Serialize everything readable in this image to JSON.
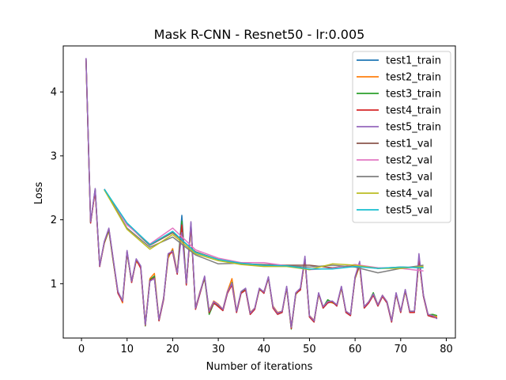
{
  "chart_data": {
    "type": "line",
    "title": "Mask R-CNN - Resnet50 - lr:0.005",
    "xlabel": "Number of iterations",
    "ylabel": "Loss",
    "xlim": [
      -4,
      82
    ],
    "ylim": [
      0.15,
      4.72
    ],
    "xticks": [
      0,
      10,
      20,
      30,
      40,
      50,
      60,
      70,
      80
    ],
    "yticks": [
      1,
      2,
      3,
      4
    ],
    "grid": false,
    "legend_position": "top-right",
    "series": [
      {
        "name": "test1_train",
        "color": "#1f77b4",
        "x": [
          1,
          2,
          3,
          4,
          5,
          6,
          7,
          8,
          9,
          10,
          11,
          12,
          13,
          14,
          15,
          16,
          17,
          18,
          19,
          20,
          21,
          22,
          23,
          24,
          25,
          26,
          27,
          28,
          29,
          30,
          31,
          32,
          33,
          34,
          35,
          36,
          37,
          38,
          39,
          40,
          41,
          42,
          43,
          44,
          45,
          46,
          47,
          48,
          49,
          50,
          51,
          52,
          53,
          54,
          55,
          56,
          57,
          58,
          59,
          60,
          61,
          62,
          63,
          64,
          65,
          66,
          67,
          68,
          69,
          70,
          71,
          72,
          73,
          74,
          75,
          76,
          77,
          78
        ],
        "y": [
          4.52,
          1.95,
          2.48,
          1.27,
          1.65,
          1.85,
          1.35,
          0.85,
          0.72,
          1.5,
          1.02,
          1.38,
          1.25,
          0.35,
          1.05,
          1.1,
          0.42,
          0.75,
          1.45,
          1.5,
          1.15,
          2.07,
          0.98,
          1.95,
          0.6,
          0.85,
          1.1,
          0.55,
          0.7,
          0.65,
          0.58,
          0.85,
          1.0,
          0.55,
          0.85,
          0.9,
          0.52,
          0.6,
          0.92,
          0.85,
          1.1,
          0.62,
          0.52,
          0.55,
          0.95,
          0.3,
          0.85,
          0.9,
          1.4,
          0.48,
          0.4,
          0.85,
          0.62,
          0.7,
          0.72,
          0.65,
          0.95,
          0.55,
          0.5,
          1.1,
          1.3,
          0.62,
          0.7,
          0.82,
          0.65,
          0.8,
          0.7,
          0.4,
          0.85,
          0.55,
          0.9,
          0.55,
          0.55,
          1.4,
          0.8,
          0.5,
          0.48,
          0.47
        ]
      },
      {
        "name": "test2_train",
        "color": "#ff7f0e",
        "x": [
          1,
          2,
          3,
          4,
          5,
          6,
          7,
          8,
          9,
          10,
          11,
          12,
          13,
          14,
          15,
          16,
          17,
          18,
          19,
          20,
          21,
          22,
          23,
          24,
          25,
          26,
          27,
          28,
          29,
          30,
          31,
          32,
          33,
          34,
          35,
          36,
          37,
          38,
          39,
          40,
          41,
          42,
          43,
          44,
          45,
          46,
          47,
          48,
          49,
          50,
          51,
          52,
          53,
          54,
          55,
          56,
          57,
          58,
          59,
          60,
          61,
          62,
          63,
          64,
          65,
          66,
          67,
          68,
          69,
          70,
          71,
          72,
          73,
          74,
          75,
          76,
          77,
          78
        ],
        "y": [
          4.5,
          1.97,
          2.45,
          1.28,
          1.63,
          1.83,
          1.33,
          0.87,
          0.7,
          1.48,
          1.05,
          1.35,
          1.27,
          0.37,
          1.08,
          1.16,
          0.44,
          0.78,
          1.4,
          1.55,
          1.18,
          1.95,
          1.0,
          1.9,
          0.62,
          0.88,
          1.08,
          0.58,
          0.73,
          0.68,
          0.6,
          0.88,
          1.08,
          0.57,
          0.87,
          0.92,
          0.55,
          0.62,
          0.9,
          0.88,
          1.08,
          0.65,
          0.55,
          0.57,
          0.93,
          0.33,
          0.83,
          0.92,
          1.38,
          0.5,
          0.43,
          0.83,
          0.64,
          0.72,
          0.7,
          0.67,
          0.93,
          0.57,
          0.52,
          1.08,
          1.28,
          0.64,
          0.72,
          0.85,
          0.67,
          0.82,
          0.72,
          0.43,
          0.83,
          0.57,
          0.88,
          0.57,
          0.57,
          1.38,
          0.82,
          0.52,
          0.5,
          0.48
        ]
      },
      {
        "name": "test3_train",
        "color": "#2ca02c",
        "x": [
          1,
          2,
          3,
          4,
          5,
          6,
          7,
          8,
          9,
          10,
          11,
          12,
          13,
          14,
          15,
          16,
          17,
          18,
          19,
          20,
          21,
          22,
          23,
          24,
          25,
          26,
          27,
          28,
          29,
          30,
          31,
          32,
          33,
          34,
          35,
          36,
          37,
          38,
          39,
          40,
          41,
          42,
          43,
          44,
          45,
          46,
          47,
          48,
          49,
          50,
          51,
          52,
          53,
          54,
          55,
          56,
          57,
          58,
          59,
          60,
          61,
          62,
          63,
          64,
          65,
          66,
          67,
          68,
          69,
          70,
          71,
          72,
          73,
          74,
          75,
          76,
          77,
          78
        ],
        "y": [
          4.51,
          1.96,
          2.47,
          1.29,
          1.64,
          1.84,
          1.34,
          0.86,
          0.74,
          1.49,
          1.03,
          1.37,
          1.26,
          0.34,
          1.06,
          1.12,
          0.43,
          0.76,
          1.44,
          1.52,
          1.16,
          1.98,
          0.99,
          1.92,
          0.61,
          0.86,
          1.09,
          0.52,
          0.69,
          0.66,
          0.59,
          0.86,
          1.02,
          0.56,
          0.86,
          0.91,
          0.53,
          0.61,
          0.91,
          0.86,
          1.09,
          0.63,
          0.53,
          0.56,
          0.94,
          0.29,
          0.84,
          0.91,
          1.39,
          0.49,
          0.41,
          0.84,
          0.63,
          0.75,
          0.71,
          0.66,
          0.94,
          0.56,
          0.51,
          1.09,
          1.29,
          0.63,
          0.71,
          0.86,
          0.66,
          0.81,
          0.71,
          0.41,
          0.84,
          0.56,
          0.89,
          0.56,
          0.56,
          1.39,
          0.81,
          0.51,
          0.52,
          0.5
        ]
      },
      {
        "name": "test4_train",
        "color": "#d62728",
        "x": [
          1,
          2,
          3,
          4,
          5,
          6,
          7,
          8,
          9,
          10,
          11,
          12,
          13,
          14,
          15,
          16,
          17,
          18,
          19,
          20,
          21,
          22,
          23,
          24,
          25,
          26,
          27,
          28,
          29,
          30,
          31,
          32,
          33,
          34,
          35,
          36,
          37,
          38,
          39,
          40,
          41,
          42,
          43,
          44,
          45,
          46,
          47,
          48,
          49,
          50,
          51,
          52,
          53,
          54,
          55,
          56,
          57,
          58,
          59,
          60,
          61,
          62,
          63,
          64,
          65,
          66,
          67,
          68,
          69,
          70,
          71,
          72,
          73,
          74,
          75,
          76,
          77,
          78
        ],
        "y": [
          4.52,
          1.95,
          2.46,
          1.27,
          1.65,
          1.86,
          1.36,
          0.85,
          0.72,
          1.51,
          1.02,
          1.38,
          1.24,
          0.35,
          1.05,
          1.09,
          0.42,
          0.75,
          1.46,
          1.49,
          1.15,
          1.92,
          0.98,
          1.93,
          0.6,
          0.85,
          1.11,
          0.55,
          0.7,
          0.64,
          0.58,
          0.85,
          0.98,
          0.55,
          0.85,
          0.9,
          0.52,
          0.6,
          0.92,
          0.85,
          1.1,
          0.62,
          0.52,
          0.55,
          0.95,
          0.3,
          0.85,
          0.9,
          1.4,
          0.48,
          0.4,
          0.85,
          0.62,
          0.7,
          0.72,
          0.65,
          0.95,
          0.55,
          0.5,
          1.1,
          1.3,
          0.62,
          0.7,
          0.82,
          0.65,
          0.8,
          0.7,
          0.4,
          0.85,
          0.55,
          0.9,
          0.55,
          0.55,
          1.4,
          0.8,
          0.5,
          0.48,
          0.46
        ]
      },
      {
        "name": "test5_train",
        "color": "#9467bd",
        "x": [
          1,
          2,
          3,
          4,
          5,
          6,
          7,
          8,
          9,
          10,
          11,
          12,
          13,
          14,
          15,
          16,
          17,
          18,
          19,
          20,
          21,
          22,
          23,
          24,
          25,
          26,
          27,
          28,
          29,
          30,
          31,
          32,
          33,
          34,
          35,
          36,
          37,
          38,
          39,
          40,
          41,
          42,
          43,
          44,
          45,
          46,
          47,
          48,
          49,
          50,
          51,
          52,
          53,
          54,
          55,
          56,
          57,
          58,
          59,
          60,
          61,
          62,
          63,
          64,
          65,
          66,
          67,
          68,
          69,
          70,
          71,
          72,
          73,
          74,
          75,
          76,
          77,
          78
        ],
        "y": [
          4.53,
          1.97,
          2.49,
          1.28,
          1.66,
          1.87,
          1.37,
          0.88,
          0.73,
          1.52,
          1.04,
          1.39,
          1.28,
          0.36,
          1.04,
          1.08,
          0.44,
          0.77,
          1.47,
          1.51,
          1.17,
          1.8,
          1.01,
          1.97,
          0.62,
          0.87,
          1.12,
          0.57,
          0.72,
          0.67,
          0.6,
          0.87,
          1.01,
          0.57,
          0.88,
          0.93,
          0.54,
          0.62,
          0.93,
          0.87,
          1.11,
          0.64,
          0.54,
          0.57,
          0.96,
          0.32,
          0.86,
          0.93,
          1.43,
          0.5,
          0.42,
          0.86,
          0.64,
          0.72,
          0.73,
          0.67,
          0.96,
          0.57,
          0.52,
          1.11,
          1.35,
          0.64,
          0.72,
          0.84,
          0.67,
          0.82,
          0.72,
          0.42,
          0.86,
          0.57,
          0.91,
          0.57,
          0.57,
          1.47,
          0.82,
          0.52,
          0.5,
          0.45
        ]
      },
      {
        "name": "test1_val",
        "color": "#8c564b",
        "x": [
          5,
          10,
          15,
          20,
          25,
          30,
          35,
          40,
          45,
          50,
          55,
          60,
          65,
          70,
          75
        ],
        "y": [
          2.48,
          1.93,
          1.6,
          1.8,
          1.5,
          1.38,
          1.31,
          1.3,
          1.29,
          1.29,
          1.25,
          1.29,
          1.24,
          1.26,
          1.25
        ]
      },
      {
        "name": "test2_val",
        "color": "#e377c2",
        "x": [
          5,
          10,
          15,
          20,
          25,
          30,
          35,
          40,
          45,
          50,
          55,
          60,
          65,
          70,
          75
        ],
        "y": [
          2.48,
          1.92,
          1.62,
          1.87,
          1.53,
          1.4,
          1.33,
          1.33,
          1.28,
          1.22,
          1.24,
          1.3,
          1.25,
          1.24,
          1.2
        ]
      },
      {
        "name": "test3_val",
        "color": "#7f7f7f",
        "x": [
          5,
          10,
          15,
          20,
          25,
          30,
          35,
          40,
          45,
          50,
          55,
          60,
          65,
          70,
          75
        ],
        "y": [
          2.48,
          1.87,
          1.57,
          1.73,
          1.45,
          1.31,
          1.32,
          1.28,
          1.28,
          1.26,
          1.29,
          1.26,
          1.17,
          1.24,
          1.29
        ]
      },
      {
        "name": "test4_val",
        "color": "#bcbd22",
        "x": [
          5,
          10,
          15,
          20,
          25,
          30,
          35,
          40,
          45,
          50,
          55,
          60,
          65,
          70,
          75
        ],
        "y": [
          2.47,
          1.85,
          1.54,
          1.77,
          1.47,
          1.36,
          1.3,
          1.27,
          1.27,
          1.22,
          1.31,
          1.29,
          1.24,
          1.24,
          1.27
        ]
      },
      {
        "name": "test5_val",
        "color": "#17becf",
        "x": [
          5,
          10,
          15,
          20,
          25,
          30,
          35,
          40,
          45,
          50,
          55,
          60,
          65,
          70,
          75
        ],
        "y": [
          2.48,
          1.95,
          1.61,
          1.82,
          1.49,
          1.38,
          1.32,
          1.29,
          1.28,
          1.23,
          1.23,
          1.27,
          1.24,
          1.26,
          1.25
        ]
      }
    ]
  }
}
